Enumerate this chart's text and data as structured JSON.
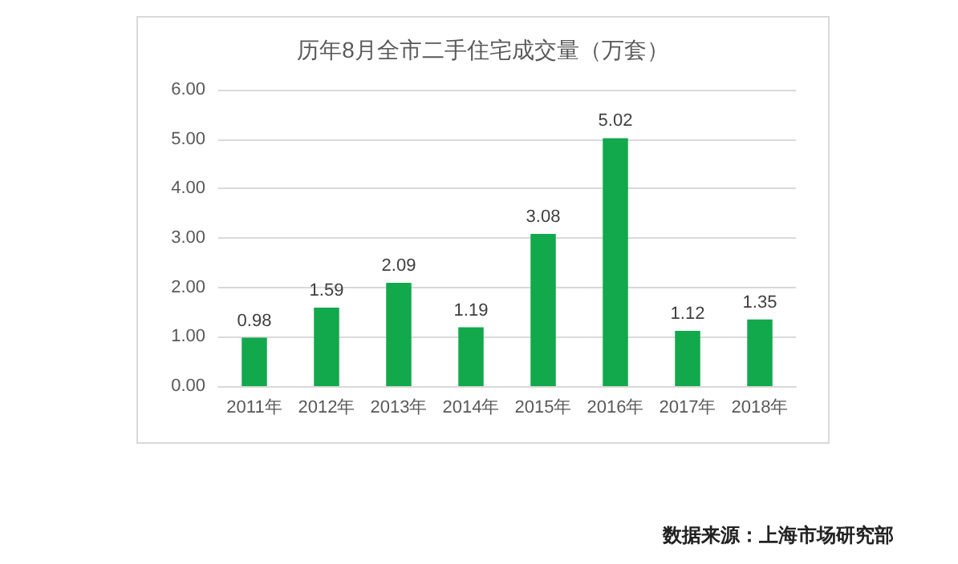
{
  "chart_data": {
    "type": "bar",
    "title": "历年8月全市二手住宅成交量（万套）",
    "categories": [
      "2011年",
      "2012年",
      "2013年",
      "2014年",
      "2015年",
      "2016年",
      "2017年",
      "2018年"
    ],
    "values": [
      0.98,
      1.59,
      2.09,
      1.19,
      3.08,
      5.02,
      1.12,
      1.35
    ],
    "color": "#12a84c",
    "ylim": [
      0,
      6
    ],
    "yticks": [
      {
        "value": 0,
        "label": "0.00"
      },
      {
        "value": 1,
        "label": "1.00"
      },
      {
        "value": 2,
        "label": "2.00"
      },
      {
        "value": 3,
        "label": "3.00"
      },
      {
        "value": 4,
        "label": "4.00"
      },
      {
        "value": 5,
        "label": "5.00"
      },
      {
        "value": 6,
        "label": "6.00"
      }
    ],
    "grid": "y",
    "data_labels": true,
    "annotations": [
      "数据来源：上海市场研究部"
    ]
  }
}
